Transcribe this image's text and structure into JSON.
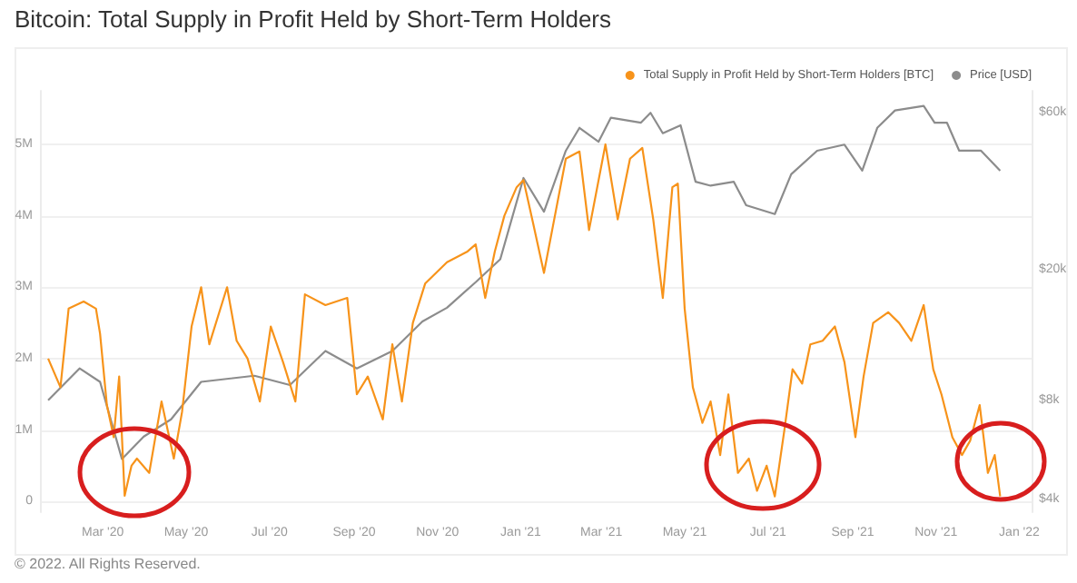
{
  "chart_data": {
    "type": "line",
    "title": "Bitcoin: Total Supply in Profit Held by Short-Term Holders",
    "annotations": [
      "© 2022. All Rights Reserved."
    ],
    "series": [
      {
        "name": "Total Supply in Profit Held by Short-Term Holders [BTC]",
        "color": "#f7931a",
        "axis": "y",
        "x": [
          "2020-01-21",
          "2020-01-30",
          "2020-02-05",
          "2020-02-16",
          "2020-02-25",
          "2020-02-28",
          "2020-03-04",
          "2020-03-09",
          "2020-03-13",
          "2020-03-17",
          "2020-03-22",
          "2020-03-26",
          "2020-04-04",
          "2020-04-13",
          "2020-04-22",
          "2020-04-28",
          "2020-05-05",
          "2020-05-12",
          "2020-05-18",
          "2020-05-31",
          "2020-06-07",
          "2020-06-15",
          "2020-06-24",
          "2020-07-02",
          "2020-07-11",
          "2020-07-20",
          "2020-07-27",
          "2020-08-11",
          "2020-08-27",
          "2020-09-03",
          "2020-09-11",
          "2020-09-22",
          "2020-09-29",
          "2020-10-06",
          "2020-10-14",
          "2020-10-23",
          "2020-11-08",
          "2020-11-23",
          "2020-11-29",
          "2020-12-06",
          "2020-12-13",
          "2020-12-20",
          "2020-12-29",
          "2021-01-03",
          "2021-01-10",
          "2021-01-18",
          "2021-01-24",
          "2021-02-03",
          "2021-02-13",
          "2021-02-20",
          "2021-03-04",
          "2021-03-13",
          "2021-03-22",
          "2021-03-31",
          "2021-04-08",
          "2021-04-15",
          "2021-04-22",
          "2021-04-26",
          "2021-05-01",
          "2021-05-07",
          "2021-05-14",
          "2021-05-20",
          "2021-05-27",
          "2021-06-02",
          "2021-06-09",
          "2021-06-17",
          "2021-06-23",
          "2021-06-30",
          "2021-07-06",
          "2021-07-13",
          "2021-07-19",
          "2021-07-26",
          "2021-08-01",
          "2021-08-10",
          "2021-08-19",
          "2021-08-26",
          "2021-09-03",
          "2021-09-09",
          "2021-09-16",
          "2021-09-27",
          "2021-10-05",
          "2021-10-14",
          "2021-10-23",
          "2021-10-30",
          "2021-11-05",
          "2021-11-13",
          "2021-11-20",
          "2021-11-26",
          "2021-12-03",
          "2021-12-09",
          "2021-12-14",
          "2021-12-18"
        ],
        "values": [
          2000000,
          1600000,
          2700000,
          2800000,
          2700000,
          2350000,
          1350000,
          900000,
          1750000,
          80000,
          500000,
          600000,
          400000,
          1400000,
          600000,
          1250000,
          2450000,
          3000000,
          2200000,
          3000000,
          2250000,
          2000000,
          1400000,
          2450000,
          1950000,
          1400000,
          2900000,
          2750000,
          2850000,
          1500000,
          1750000,
          1150000,
          2200000,
          1400000,
          2500000,
          3050000,
          3350000,
          3500000,
          3600000,
          2850000,
          3500000,
          4000000,
          4400000,
          4500000,
          3900000,
          3200000,
          3800000,
          4800000,
          4900000,
          3800000,
          5000000,
          3950000,
          4800000,
          4950000,
          3950000,
          2850000,
          4400000,
          4450000,
          2700000,
          1600000,
          1100000,
          1400000,
          650000,
          1500000,
          400000,
          600000,
          150000,
          500000,
          70000,
          1000000,
          1850000,
          1650000,
          2200000,
          2250000,
          2450000,
          1950000,
          900000,
          1750000,
          2500000,
          2650000,
          2500000,
          2250000,
          2750000,
          1850000,
          1500000,
          900000,
          650000,
          850000,
          1350000,
          400000,
          650000,
          70000
        ]
      },
      {
        "name": "Price [USD]",
        "color": "#8c8c8c",
        "axis": "y2",
        "x": [
          "2020-01-21",
          "2020-02-13",
          "2020-02-28",
          "2020-03-15",
          "2020-03-31",
          "2020-04-20",
          "2020-05-12",
          "2020-06-20",
          "2020-07-16",
          "2020-08-11",
          "2020-09-03",
          "2020-09-29",
          "2020-10-21",
          "2020-11-08",
          "2020-11-29",
          "2020-12-17",
          "2021-01-03",
          "2021-01-18",
          "2021-02-03",
          "2021-02-13",
          "2021-02-27",
          "2021-03-08",
          "2021-03-30",
          "2021-04-06",
          "2021-04-15",
          "2021-04-28",
          "2021-05-09",
          "2021-05-20",
          "2021-06-06",
          "2021-06-15",
          "2021-07-06",
          "2021-07-18",
          "2021-08-06",
          "2021-08-26",
          "2021-09-08",
          "2021-09-19",
          "2021-10-02",
          "2021-10-23",
          "2021-10-31",
          "2021-11-09",
          "2021-11-18",
          "2021-12-04",
          "2021-12-18"
        ],
        "values": [
          8000,
          10000,
          9100,
          5300,
          6200,
          7000,
          9100,
          9500,
          8900,
          11300,
          10000,
          11300,
          13900,
          15300,
          18300,
          21500,
          38000,
          30000,
          46000,
          54000,
          49000,
          58000,
          56000,
          60000,
          52000,
          55000,
          37000,
          36000,
          37000,
          31400,
          29500,
          39000,
          46000,
          48000,
          40000,
          54000,
          61000,
          63000,
          56000,
          56000,
          46000,
          46000,
          40000
        ]
      }
    ],
    "xlim": [
      "2020-01-15",
      "2022-01-10"
    ],
    "xticks": [
      {
        "value": "2020-03-01",
        "label": "Mar '20"
      },
      {
        "value": "2020-05-01",
        "label": "May '20"
      },
      {
        "value": "2020-07-01",
        "label": "Jul '20"
      },
      {
        "value": "2020-09-01",
        "label": "Sep '20"
      },
      {
        "value": "2020-11-01",
        "label": "Nov '20"
      },
      {
        "value": "2021-01-01",
        "label": "Jan '21"
      },
      {
        "value": "2021-03-01",
        "label": "Mar '21"
      },
      {
        "value": "2021-05-01",
        "label": "May '21"
      },
      {
        "value": "2021-07-01",
        "label": "Jul '21"
      },
      {
        "value": "2021-09-01",
        "label": "Sep '21"
      },
      {
        "value": "2021-11-01",
        "label": "Nov '21"
      },
      {
        "value": "2022-01-01",
        "label": "Jan '22"
      }
    ],
    "ylim": [
      -150000,
      5750000
    ],
    "yticks": [
      0,
      {
        "value": 1000000,
        "label": "1M"
      },
      {
        "value": 2000000,
        "label": "2M"
      },
      {
        "value": 3000000,
        "label": "3M"
      },
      {
        "value": 4000000,
        "label": "4M"
      },
      {
        "value": 5000000,
        "label": "5M"
      }
    ],
    "y2lim": [
      3650,
      70000
    ],
    "y2ticks": [
      {
        "value": 4000,
        "label": "$4k"
      },
      {
        "value": 8000,
        "label": "$8k"
      },
      {
        "value": 20000,
        "label": "$20k"
      },
      {
        "value": 60000,
        "label": "$60k"
      }
    ],
    "log": "y2",
    "grid": "y",
    "legend": "top right",
    "marker": "none",
    "line_style": "solid"
  }
}
